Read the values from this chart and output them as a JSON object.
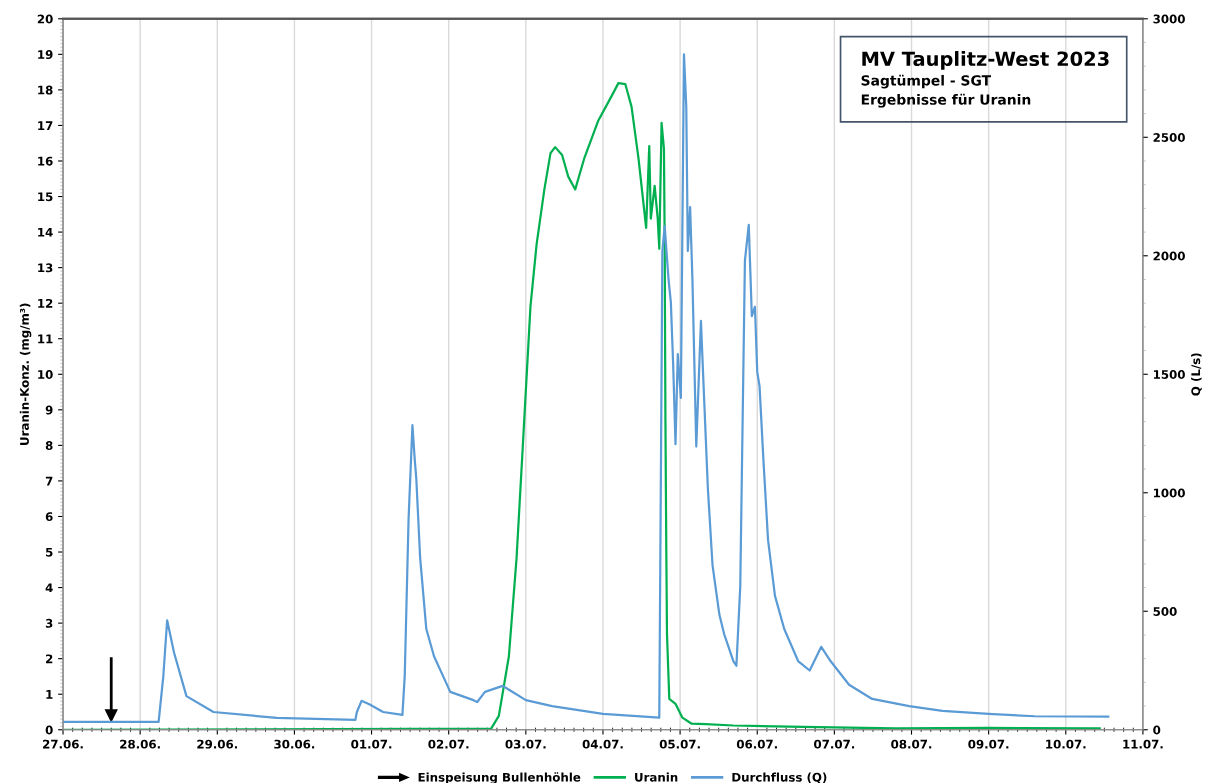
{
  "chart_data": {
    "type": "line",
    "title": "MV Tauplitz-West 2023",
    "subtitle": "Sagtümpel - SGT\nErgebnisse für Uranin",
    "ylabel": "Uranin-Konz. (mg/m³)",
    "y2label": "Q (L/s)",
    "xlim": [
      "2023-06-27",
      "2023-07-11"
    ],
    "xticks": [
      {
        "value": "2023-06-27",
        "label": "27.06."
      },
      {
        "value": "2023-06-28",
        "label": "28.06."
      },
      {
        "value": "2023-06-29",
        "label": "29.06."
      },
      {
        "value": "2023-06-30",
        "label": "30.06."
      },
      {
        "value": "2023-07-01",
        "label": "01.07."
      },
      {
        "value": "2023-07-02",
        "label": "02.07."
      },
      {
        "value": "2023-07-03",
        "label": "03.07."
      },
      {
        "value": "2023-07-04",
        "label": "04.07."
      },
      {
        "value": "2023-07-05",
        "label": "05.07."
      },
      {
        "value": "2023-07-06",
        "label": "06.07."
      },
      {
        "value": "2023-07-07",
        "label": "07.07."
      },
      {
        "value": "2023-07-08",
        "label": "08.07."
      },
      {
        "value": "2023-07-09",
        "label": "09.07."
      },
      {
        "value": "2023-07-10",
        "label": "10.07."
      },
      {
        "value": "2023-07-11",
        "label": "11.07."
      }
    ],
    "ylim": [
      0,
      20
    ],
    "yticks": [
      0,
      1,
      2,
      3,
      4,
      5,
      6,
      7,
      8,
      9,
      10,
      11,
      12,
      13,
      14,
      15,
      16,
      17,
      18,
      19,
      20
    ],
    "y2lim": [
      0,
      3000
    ],
    "y2ticks": [
      0,
      500,
      1000,
      1500,
      2000,
      2500,
      3000
    ],
    "grid": "x",
    "legend": "bottom",
    "series": [
      {
        "name": "Einspeisung Bullenhöhle",
        "type": "line",
        "marker": "triangle",
        "color": "#000000",
        "x": [
          "2023-06-27T15:00",
          "2023-06-27T15:00"
        ],
        "values": [
          2,
          0.4
        ]
      },
      {
        "name": "Uranin",
        "color": "#00b050",
        "x": [
          "2023-06-27T00:00",
          "2023-07-02T13:12",
          "2023-07-02T15:36",
          "2023-07-02T18:43",
          "2023-07-02T21:07",
          "2023-07-02T23:02",
          "2023-07-03T01:26",
          "2023-07-03T03:22",
          "2023-07-03T05:46",
          "2023-07-03T07:41",
          "2023-07-03T09:07",
          "2023-07-03T11:17",
          "2023-07-03T13:12",
          "2023-07-03T15:22",
          "2023-07-03T18:14",
          "2023-07-03T22:34",
          "2023-07-04T02:53",
          "2023-07-04T04:48",
          "2023-07-04T06:58",
          "2023-07-04T08:53",
          "2023-07-04T11:02",
          "2023-07-04T12:00",
          "2023-07-04T13:26",
          "2023-07-04T14:24",
          "2023-07-04T14:53",
          "2023-07-04T16:05",
          "2023-07-04T17:02",
          "2023-07-04T17:31",
          "2023-07-04T18:14",
          "2023-07-04T18:58",
          "2023-07-04T19:12",
          "2023-07-04T19:26",
          "2023-07-04T19:41",
          "2023-07-04T19:55",
          "2023-07-04T20:38",
          "2023-07-04T22:34",
          "2023-07-05T00:43",
          "2023-07-05T03:36",
          "2023-07-05T07:55",
          "2023-07-05T16:34",
          "2023-07-06T14:10",
          "2023-07-07T18:58",
          "2023-07-09T00:00",
          "2023-07-10T10:34"
        ],
        "values": [
          0,
          0.03,
          0.39,
          2.06,
          4.83,
          7.94,
          11.9,
          13.67,
          15.2,
          16.22,
          16.39,
          16.17,
          15.56,
          15.2,
          16.09,
          17.14,
          17.86,
          18.19,
          18.16,
          17.53,
          16.09,
          15.3,
          14.12,
          16.42,
          14.38,
          15.3,
          14.38,
          13.53,
          17.07,
          16.35,
          13.73,
          8.74,
          5.3,
          2.7,
          0.87,
          0.73,
          0.34,
          0.17,
          0.16,
          0.12,
          0.08,
          0.04,
          0.05,
          0.04
        ]
      },
      {
        "name": "Durchfluss (Q)",
        "color": "#5b9bd5",
        "axis": "y2",
        "x": [
          "2023-06-27T00:00",
          "2023-06-28T05:45",
          "2023-06-28T07:12",
          "2023-06-28T08:24",
          "2023-06-28T10:33",
          "2023-06-28T14:24",
          "2023-06-28T22:48",
          "2023-06-29T18:29",
          "2023-06-30T18:58",
          "2023-06-30T19:26",
          "2023-06-30T20:53",
          "2023-06-30T23:17",
          "2023-07-01T03:36",
          "2023-07-01T09:36",
          "2023-07-01T10:19",
          "2023-07-01T11:31",
          "2023-07-01T12:43",
          "2023-07-01T13:26",
          "2023-07-01T13:55",
          "2023-07-01T15:07",
          "2023-07-01T17:02",
          "2023-07-01T19:26",
          "2023-07-02T00:29",
          "2023-07-02T07:41",
          "2023-07-02T08:53",
          "2023-07-02T11:17",
          "2023-07-02T16:48",
          "2023-07-03T00:00",
          "2023-07-03T08:10",
          "2023-07-04T00:00",
          "2023-07-04T17:31",
          "2023-07-04T18:29",
          "2023-07-04T19:12",
          "2023-07-04T20:24",
          "2023-07-04T21:07",
          "2023-07-04T21:50",
          "2023-07-04T22:34",
          "2023-07-04T23:17",
          "2023-07-05T00:14",
          "2023-07-05T01:12",
          "2023-07-05T01:55",
          "2023-07-05T02:24",
          "2023-07-05T03:07",
          "2023-07-05T03:50",
          "2023-07-05T05:02",
          "2023-07-05T06:29",
          "2023-07-05T07:26",
          "2023-07-05T08:38",
          "2023-07-05T10:05",
          "2023-07-05T12:14",
          "2023-07-05T13:41",
          "2023-07-05T16:34",
          "2023-07-05T17:31",
          "2023-07-05T18:43",
          "2023-07-05T20:10",
          "2023-07-05T21:22",
          "2023-07-05T22:19",
          "2023-07-05T23:17",
          "2023-07-06T00:00",
          "2023-07-06T00:43",
          "2023-07-06T01:55",
          "2023-07-06T03:22",
          "2023-07-06T05:31",
          "2023-07-06T08:24",
          "2023-07-06T12:43",
          "2023-07-06T16:19",
          "2023-07-06T19:55",
          "2023-07-06T22:48",
          "2023-07-07T04:34",
          "2023-07-07T11:46",
          "2023-07-07T23:17",
          "2023-07-08T09:36",
          "2023-07-09T00:00",
          "2023-07-09T14:24",
          "2023-07-10T13:12"
        ],
        "values": [
          33,
          33,
          225,
          462,
          325,
          142,
          75,
          50,
          42,
          75,
          122,
          108,
          75,
          63,
          225,
          890,
          1285,
          1140,
          1060,
          725,
          425,
          310,
          160,
          125,
          117,
          160,
          185,
          125,
          100,
          67,
          51,
          2020,
          2125,
          1900,
          1805,
          1545,
          1205,
          1585,
          1400,
          2850,
          2630,
          2020,
          2205,
          1900,
          1195,
          1725,
          1410,
          1020,
          695,
          485,
          405,
          290,
          270,
          605,
          1980,
          2130,
          1745,
          1785,
          1510,
          1450,
          1140,
          800,
          565,
          425,
          290,
          250,
          350,
          290,
          190,
          130,
          100,
          80,
          67,
          57,
          55
        ]
      }
    ]
  }
}
